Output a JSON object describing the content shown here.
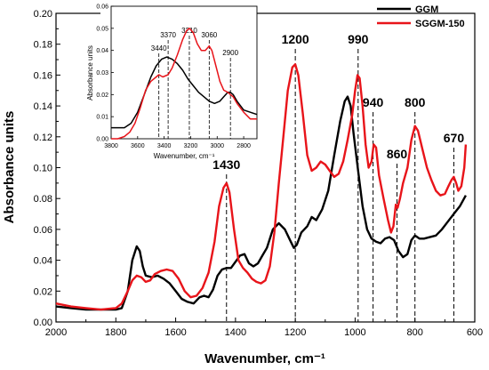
{
  "chart_data": [
    {
      "type": "line",
      "xlabel": "Wavenumber, cm⁻¹",
      "ylabel": "Absorbance units",
      "xlim": [
        2000,
        600
      ],
      "ylim": [
        0,
        0.2
      ],
      "x_reversed": true,
      "x_ticks": [
        2000,
        1800,
        1600,
        1400,
        1200,
        1000,
        800,
        600
      ],
      "y_ticks": [
        0.0,
        0.02,
        0.04,
        0.06,
        0.08,
        0.1,
        0.12,
        0.14,
        0.16,
        0.18,
        0.2
      ],
      "grid": false,
      "legend_position": "top-right",
      "series": [
        {
          "name": "GGM",
          "color": "#000000",
          "points": [
            [
              2000,
              0.01
            ],
            [
              1950,
              0.009
            ],
            [
              1900,
              0.008
            ],
            [
              1850,
              0.008
            ],
            [
              1800,
              0.008
            ],
            [
              1780,
              0.009
            ],
            [
              1760,
              0.02
            ],
            [
              1745,
              0.04
            ],
            [
              1730,
              0.049
            ],
            [
              1720,
              0.046
            ],
            [
              1710,
              0.036
            ],
            [
              1700,
              0.03
            ],
            [
              1680,
              0.029
            ],
            [
              1660,
              0.03
            ],
            [
              1640,
              0.028
            ],
            [
              1620,
              0.025
            ],
            [
              1600,
              0.02
            ],
            [
              1580,
              0.015
            ],
            [
              1560,
              0.013
            ],
            [
              1540,
              0.012
            ],
            [
              1520,
              0.016
            ],
            [
              1505,
              0.017
            ],
            [
              1490,
              0.016
            ],
            [
              1475,
              0.021
            ],
            [
              1460,
              0.03
            ],
            [
              1445,
              0.034
            ],
            [
              1430,
              0.035
            ],
            [
              1415,
              0.035
            ],
            [
              1400,
              0.039
            ],
            [
              1385,
              0.043
            ],
            [
              1370,
              0.044
            ],
            [
              1355,
              0.038
            ],
            [
              1340,
              0.036
            ],
            [
              1325,
              0.038
            ],
            [
              1310,
              0.043
            ],
            [
              1295,
              0.048
            ],
            [
              1275,
              0.06
            ],
            [
              1255,
              0.064
            ],
            [
              1235,
              0.06
            ],
            [
              1215,
              0.052
            ],
            [
              1205,
              0.048
            ],
            [
              1195,
              0.05
            ],
            [
              1180,
              0.058
            ],
            [
              1160,
              0.062
            ],
            [
              1145,
              0.068
            ],
            [
              1130,
              0.066
            ],
            [
              1110,
              0.073
            ],
            [
              1090,
              0.085
            ],
            [
              1070,
              0.108
            ],
            [
              1050,
              0.13
            ],
            [
              1035,
              0.143
            ],
            [
              1025,
              0.146
            ],
            [
              1015,
              0.14
            ],
            [
              1005,
              0.122
            ],
            [
              990,
              0.098
            ],
            [
              975,
              0.075
            ],
            [
              960,
              0.06
            ],
            [
              945,
              0.054
            ],
            [
              930,
              0.052
            ],
            [
              915,
              0.051
            ],
            [
              900,
              0.054
            ],
            [
              885,
              0.055
            ],
            [
              870,
              0.053
            ],
            [
              855,
              0.046
            ],
            [
              840,
              0.042
            ],
            [
              825,
              0.044
            ],
            [
              812,
              0.053
            ],
            [
              800,
              0.056
            ],
            [
              785,
              0.054
            ],
            [
              770,
              0.054
            ],
            [
              750,
              0.055
            ],
            [
              730,
              0.056
            ],
            [
              710,
              0.06
            ],
            [
              690,
              0.065
            ],
            [
              670,
              0.07
            ],
            [
              650,
              0.075
            ],
            [
              630,
              0.082
            ]
          ]
        },
        {
          "name": "SGGM-150",
          "color": "#e8141a",
          "points": [
            [
              2000,
              0.012
            ],
            [
              1950,
              0.01
            ],
            [
              1900,
              0.009
            ],
            [
              1850,
              0.008
            ],
            [
              1800,
              0.009
            ],
            [
              1780,
              0.012
            ],
            [
              1760,
              0.02
            ],
            [
              1745,
              0.027
            ],
            [
              1730,
              0.03
            ],
            [
              1715,
              0.029
            ],
            [
              1700,
              0.026
            ],
            [
              1685,
              0.027
            ],
            [
              1670,
              0.031
            ],
            [
              1650,
              0.033
            ],
            [
              1630,
              0.034
            ],
            [
              1610,
              0.033
            ],
            [
              1590,
              0.028
            ],
            [
              1570,
              0.02
            ],
            [
              1550,
              0.016
            ],
            [
              1530,
              0.017
            ],
            [
              1510,
              0.022
            ],
            [
              1490,
              0.032
            ],
            [
              1470,
              0.052
            ],
            [
              1455,
              0.075
            ],
            [
              1440,
              0.087
            ],
            [
              1430,
              0.09
            ],
            [
              1420,
              0.084
            ],
            [
              1405,
              0.06
            ],
            [
              1390,
              0.04
            ],
            [
              1375,
              0.035
            ],
            [
              1360,
              0.032
            ],
            [
              1345,
              0.028
            ],
            [
              1330,
              0.026
            ],
            [
              1315,
              0.025
            ],
            [
              1300,
              0.027
            ],
            [
              1285,
              0.036
            ],
            [
              1270,
              0.058
            ],
            [
              1255,
              0.09
            ],
            [
              1240,
              0.12
            ],
            [
              1225,
              0.15
            ],
            [
              1210,
              0.165
            ],
            [
              1200,
              0.167
            ],
            [
              1190,
              0.16
            ],
            [
              1175,
              0.135
            ],
            [
              1160,
              0.108
            ],
            [
              1145,
              0.098
            ],
            [
              1130,
              0.1
            ],
            [
              1115,
              0.104
            ],
            [
              1100,
              0.102
            ],
            [
              1085,
              0.098
            ],
            [
              1070,
              0.094
            ],
            [
              1055,
              0.096
            ],
            [
              1040,
              0.104
            ],
            [
              1025,
              0.118
            ],
            [
              1010,
              0.134
            ],
            [
              1000,
              0.15
            ],
            [
              992,
              0.16
            ],
            [
              985,
              0.158
            ],
            [
              975,
              0.14
            ],
            [
              965,
              0.115
            ],
            [
              955,
              0.1
            ],
            [
              945,
              0.104
            ],
            [
              938,
              0.115
            ],
            [
              930,
              0.113
            ],
            [
              920,
              0.095
            ],
            [
              905,
              0.08
            ],
            [
              890,
              0.066
            ],
            [
              880,
              0.058
            ],
            [
              872,
              0.062
            ],
            [
              864,
              0.076
            ],
            [
              858,
              0.074
            ],
            [
              850,
              0.08
            ],
            [
              840,
              0.09
            ],
            [
              825,
              0.1
            ],
            [
              812,
              0.118
            ],
            [
              800,
              0.127
            ],
            [
              790,
              0.124
            ],
            [
              775,
              0.112
            ],
            [
              760,
              0.1
            ],
            [
              745,
              0.092
            ],
            [
              730,
              0.085
            ],
            [
              715,
              0.082
            ],
            [
              700,
              0.083
            ],
            [
              688,
              0.088
            ],
            [
              678,
              0.092
            ],
            [
              670,
              0.094
            ],
            [
              662,
              0.09
            ],
            [
              655,
              0.085
            ],
            [
              645,
              0.088
            ],
            [
              635,
              0.1
            ],
            [
              630,
              0.115
            ]
          ]
        }
      ],
      "peak_labels": [
        {
          "x": 1430,
          "text": "1430"
        },
        {
          "x": 1200,
          "text": "1200"
        },
        {
          "x": 990,
          "text": "990"
        },
        {
          "x": 940,
          "text": "940"
        },
        {
          "x": 860,
          "text": "860"
        },
        {
          "x": 800,
          "text": "800"
        },
        {
          "x": 670,
          "text": "670"
        }
      ]
    },
    {
      "type": "line",
      "role": "inset",
      "xlabel": "Wavenumber, cm⁻¹",
      "ylabel": "Absorbance units",
      "xlim": [
        3800,
        2700
      ],
      "ylim": [
        0,
        0.06
      ],
      "x_reversed": true,
      "x_ticks": [
        3800,
        3600,
        3400,
        3200,
        3000,
        2800
      ],
      "y_ticks": [
        0.0,
        0.01,
        0.02,
        0.03,
        0.04,
        0.05,
        0.06
      ],
      "grid": false,
      "series": [
        {
          "name": "GGM",
          "color": "#000000",
          "points": [
            [
              3800,
              0.005
            ],
            [
              3700,
              0.005
            ],
            [
              3650,
              0.007
            ],
            [
              3600,
              0.012
            ],
            [
              3550,
              0.02
            ],
            [
              3500,
              0.028
            ],
            [
              3460,
              0.033
            ],
            [
              3420,
              0.036
            ],
            [
              3380,
              0.037
            ],
            [
              3340,
              0.036
            ],
            [
              3300,
              0.034
            ],
            [
              3260,
              0.031
            ],
            [
              3220,
              0.027
            ],
            [
              3180,
              0.024
            ],
            [
              3140,
              0.021
            ],
            [
              3100,
              0.019
            ],
            [
              3060,
              0.017
            ],
            [
              3020,
              0.016
            ],
            [
              2980,
              0.017
            ],
            [
              2950,
              0.019
            ],
            [
              2920,
              0.021
            ],
            [
              2900,
              0.021
            ],
            [
              2880,
              0.02
            ],
            [
              2850,
              0.017
            ],
            [
              2800,
              0.013
            ],
            [
              2750,
              0.012
            ],
            [
              2700,
              0.011
            ]
          ]
        },
        {
          "name": "SGGM-150",
          "color": "#e8141a",
          "points": [
            [
              3800,
              0.0
            ],
            [
              3750,
              0.0
            ],
            [
              3700,
              0.001
            ],
            [
              3660,
              0.003
            ],
            [
              3620,
              0.007
            ],
            [
              3580,
              0.014
            ],
            [
              3540,
              0.022
            ],
            [
              3500,
              0.026
            ],
            [
              3460,
              0.028
            ],
            [
              3440,
              0.029
            ],
            [
              3410,
              0.028
            ],
            [
              3370,
              0.029
            ],
            [
              3340,
              0.032
            ],
            [
              3300,
              0.038
            ],
            [
              3260,
              0.045
            ],
            [
              3230,
              0.049
            ],
            [
              3210,
              0.05
            ],
            [
              3180,
              0.048
            ],
            [
              3150,
              0.043
            ],
            [
              3120,
              0.04
            ],
            [
              3090,
              0.04
            ],
            [
              3060,
              0.042
            ],
            [
              3040,
              0.04
            ],
            [
              3010,
              0.033
            ],
            [
              2980,
              0.026
            ],
            [
              2950,
              0.022
            ],
            [
              2920,
              0.021
            ],
            [
              2900,
              0.02
            ],
            [
              2880,
              0.019
            ],
            [
              2850,
              0.016
            ],
            [
              2800,
              0.012
            ],
            [
              2750,
              0.009
            ],
            [
              2700,
              0.009
            ]
          ]
        }
      ],
      "peak_labels": [
        {
          "x": 3440,
          "text": "3440"
        },
        {
          "x": 3370,
          "text": "3370"
        },
        {
          "x": 3210,
          "text": "3210"
        },
        {
          "x": 3060,
          "text": "3060"
        },
        {
          "x": 2900,
          "text": "2900"
        }
      ]
    }
  ]
}
